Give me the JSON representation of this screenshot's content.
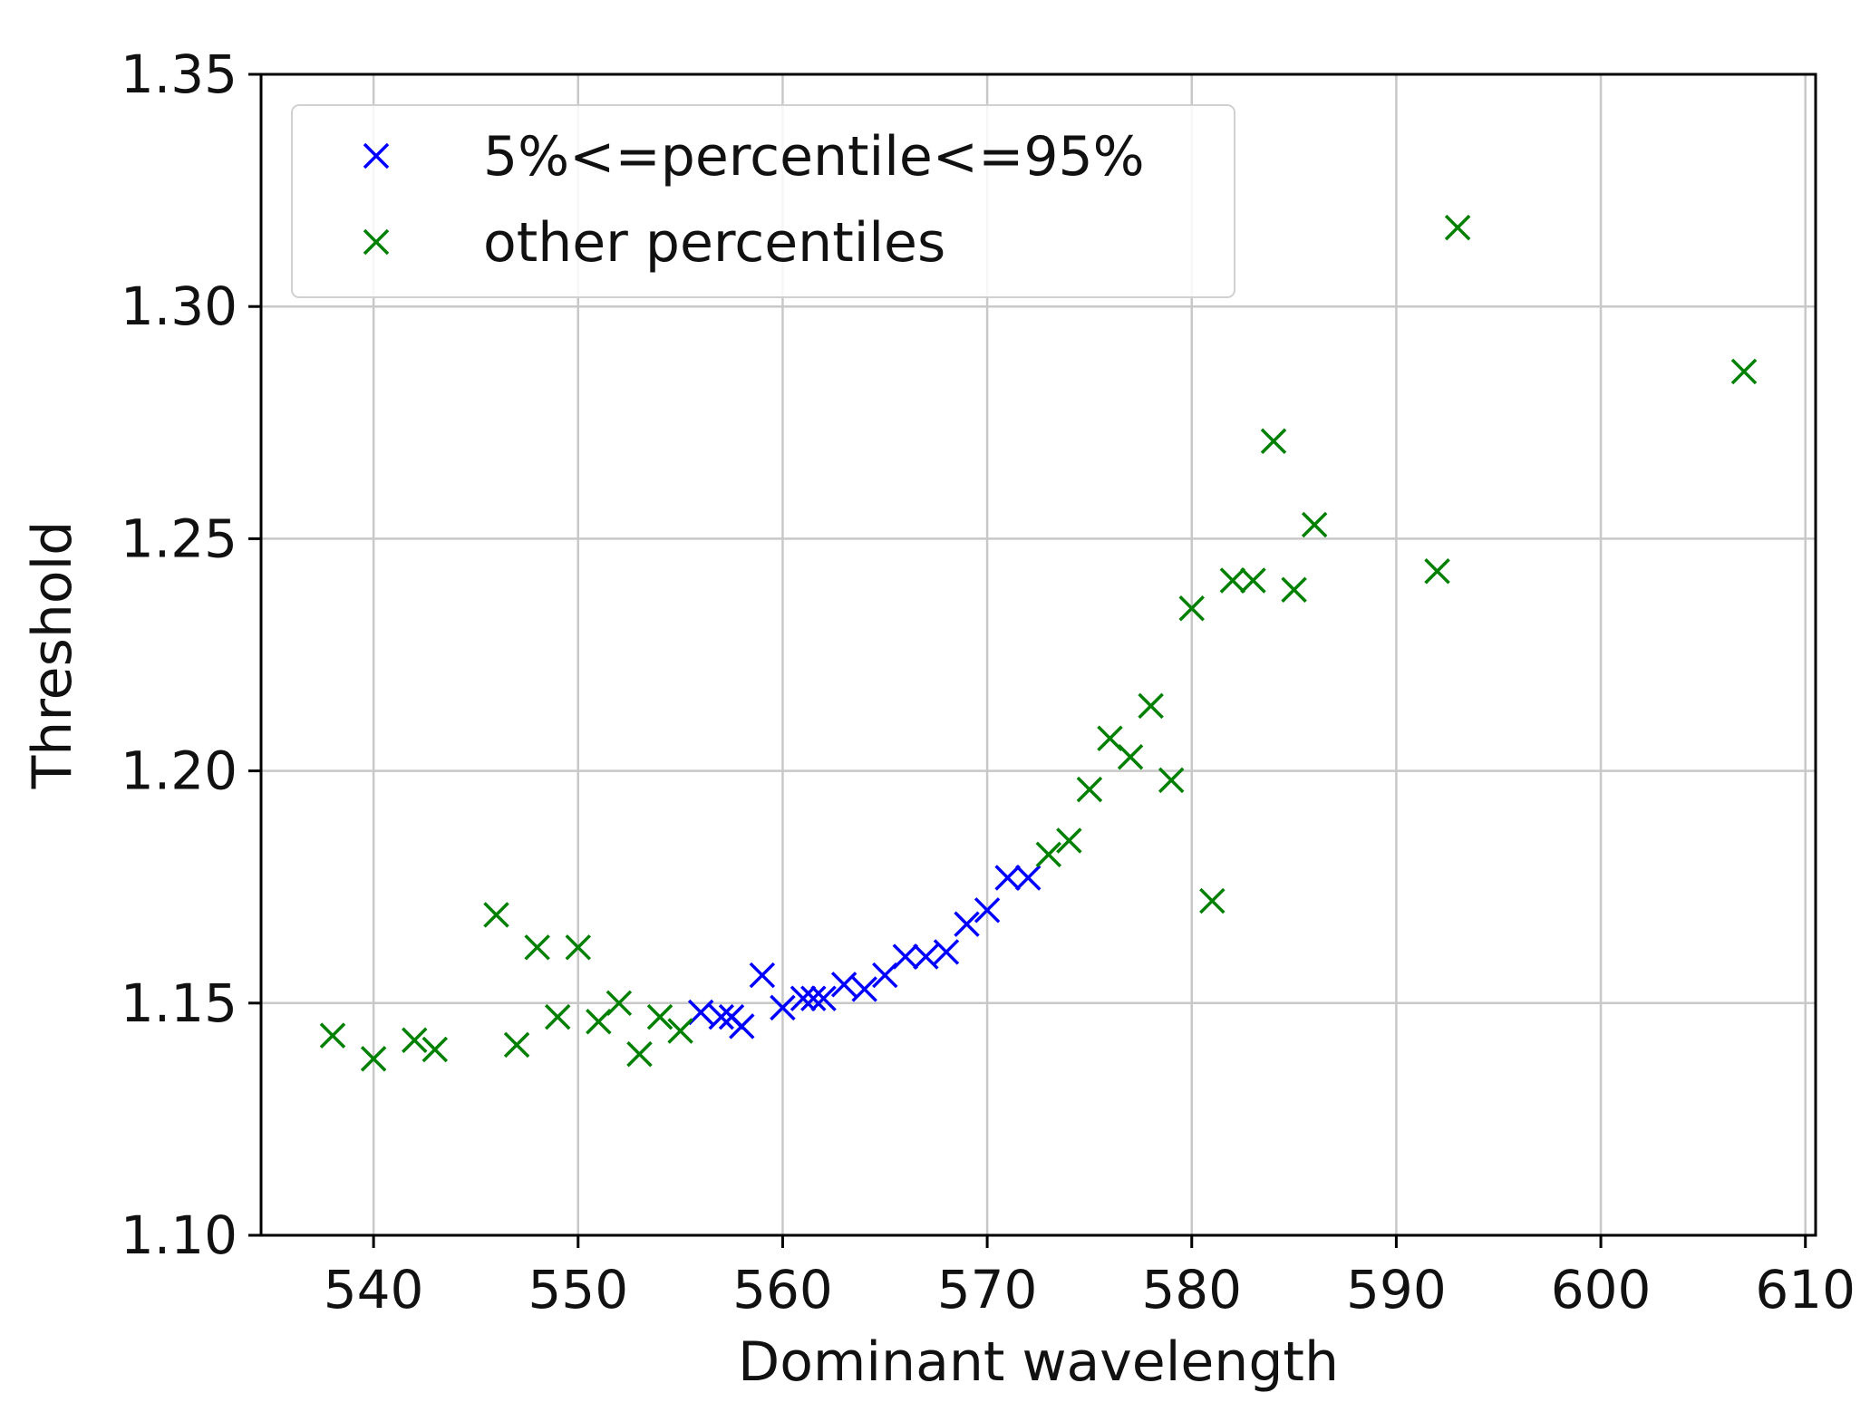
{
  "chart_data": {
    "type": "scatter",
    "title": "",
    "xlabel": "Dominant wavelength",
    "ylabel": "Threshold",
    "xlim": [
      534.5,
      610.5
    ],
    "ylim": [
      1.1,
      1.35
    ],
    "xticks": [
      540,
      550,
      560,
      570,
      580,
      590,
      600,
      610
    ],
    "yticks": [
      1.1,
      1.15,
      1.2,
      1.25,
      1.3,
      1.35
    ],
    "ytick_labels": [
      "1.10",
      "1.15",
      "1.20",
      "1.25",
      "1.30",
      "1.35"
    ],
    "grid": true,
    "legend_position": "top-left",
    "marker": "x",
    "series": [
      {
        "name": "5%<=percentile<=95%",
        "color": "#0000ff",
        "points": [
          [
            556,
            1.148
          ],
          [
            557,
            1.147
          ],
          [
            557.5,
            1.147
          ],
          [
            558,
            1.145
          ],
          [
            559,
            1.156
          ],
          [
            560,
            1.149
          ],
          [
            561,
            1.151
          ],
          [
            561.5,
            1.151
          ],
          [
            562,
            1.151
          ],
          [
            563,
            1.154
          ],
          [
            564,
            1.153
          ],
          [
            565,
            1.156
          ],
          [
            566,
            1.16
          ],
          [
            567,
            1.16
          ],
          [
            568,
            1.161
          ],
          [
            569,
            1.167
          ],
          [
            570,
            1.17
          ],
          [
            571,
            1.177
          ],
          [
            572,
            1.177
          ]
        ]
      },
      {
        "name": "other percentiles",
        "color": "#008000",
        "points": [
          [
            538,
            1.143
          ],
          [
            540,
            1.138
          ],
          [
            542,
            1.142
          ],
          [
            543,
            1.14
          ],
          [
            546,
            1.169
          ],
          [
            547,
            1.141
          ],
          [
            548,
            1.162
          ],
          [
            549,
            1.147
          ],
          [
            550,
            1.162
          ],
          [
            551,
            1.146
          ],
          [
            552,
            1.15
          ],
          [
            553,
            1.139
          ],
          [
            554,
            1.147
          ],
          [
            555,
            1.144
          ],
          [
            573,
            1.182
          ],
          [
            574,
            1.185
          ],
          [
            575,
            1.196
          ],
          [
            576,
            1.207
          ],
          [
            577,
            1.203
          ],
          [
            578,
            1.214
          ],
          [
            579,
            1.198
          ],
          [
            580,
            1.235
          ],
          [
            581,
            1.172
          ],
          [
            582,
            1.241
          ],
          [
            583,
            1.241
          ],
          [
            584,
            1.271
          ],
          [
            585,
            1.239
          ],
          [
            586,
            1.253
          ],
          [
            592,
            1.243
          ],
          [
            593,
            1.317
          ],
          [
            607,
            1.286
          ]
        ]
      }
    ]
  }
}
